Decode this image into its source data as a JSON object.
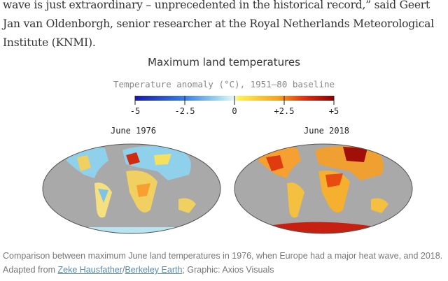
{
  "article": {
    "paragraph": "wave is just extraordinary – unprecedented in the historical record,” said Geert Jan van Oldenborgh, senior researcher at the Royal Netherlands Meteorological Institute (KNMI)."
  },
  "figure": {
    "title": "Maximum land temperatures",
    "subtitle": "Temperature anomaly (°C), 1951–80 baseline",
    "colorbar": {
      "ticks": [
        "-5",
        "-2.5",
        "0",
        "+2.5",
        "+5"
      ],
      "range": [
        -5,
        5
      ],
      "colors": [
        "#1a1aa8",
        "#3a7ee0",
        "#9fd8f0",
        "#e8f8f8",
        "#fff050",
        "#f5a020",
        "#e03010",
        "#8a0000"
      ]
    },
    "maps": [
      {
        "label": "June 1976",
        "ocean_color": "#a9a9a9"
      },
      {
        "label": "June 2018",
        "ocean_color": "#a9a9a9"
      }
    ]
  },
  "caption": {
    "text_before": "Comparison between maximum June land temperatures in 1976, when Europe had a major heat wave, and 2018. Adapted from ",
    "link1": "Zeke Hausfather",
    "sep": "/",
    "link2": "Berkeley Earth",
    "text_after": "; Graphic: Axios Visuals"
  }
}
